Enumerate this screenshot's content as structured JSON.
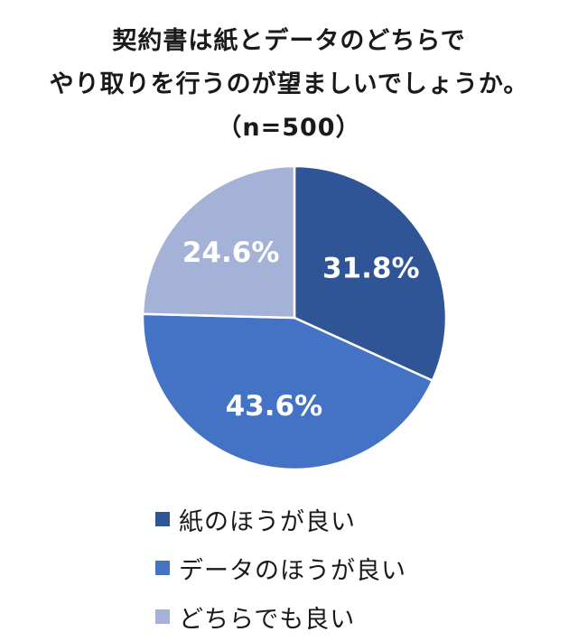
{
  "chart_data": {
    "type": "pie",
    "title": [
      "契約書は紙とデータのどちらで",
      "やり取りを行うのが望ましいでしょうか。",
      "（n=500）"
    ],
    "slices": [
      {
        "name": "紙のほうが良い",
        "value": 31.8,
        "label": "31.8%",
        "color": "#2f5597"
      },
      {
        "name": "データのほうが良い",
        "value": 43.6,
        "label": "43.6%",
        "color": "#4472c4"
      },
      {
        "name": "どちらでも良い",
        "value": 24.6,
        "label": "24.6%",
        "color": "#a5b2d8"
      }
    ],
    "legend_placement": "bottom"
  }
}
